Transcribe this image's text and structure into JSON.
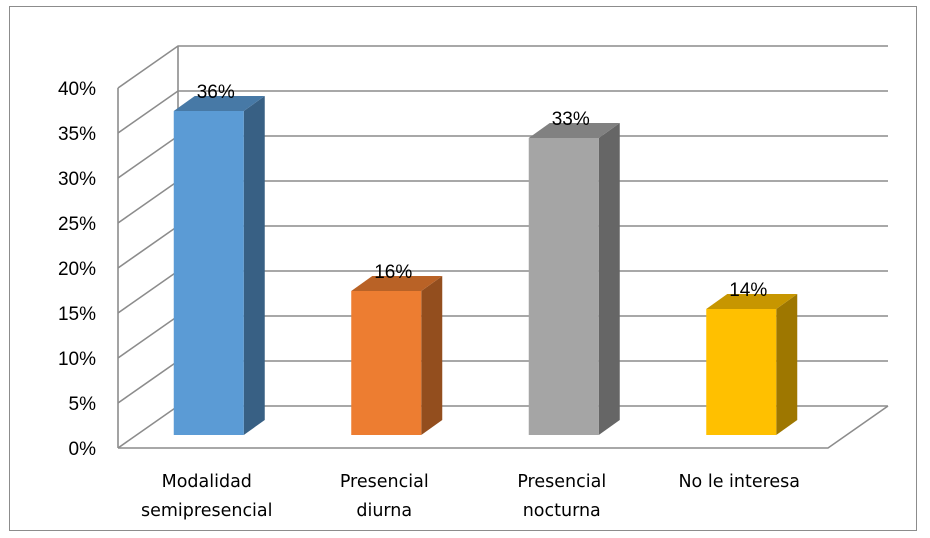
{
  "chart_data": {
    "type": "bar",
    "style": "3d-column",
    "categories": [
      [
        "Modalidad",
        "semipresencial"
      ],
      [
        "Presencial",
        "diurna"
      ],
      [
        "Presencial",
        "nocturna"
      ],
      [
        "No le interesa"
      ]
    ],
    "values": [
      36,
      16,
      33,
      14
    ],
    "data_labels": [
      "36%",
      "16%",
      "33%",
      "14%"
    ],
    "colors": [
      "#5b9bd5",
      "#ed7d31",
      "#a5a5a5",
      "#ffc000"
    ],
    "y_ticks": [
      "0%",
      "5%",
      "10%",
      "15%",
      "20%",
      "25%",
      "30%",
      "35%",
      "40%"
    ],
    "ylim": [
      0,
      40
    ],
    "y_step": 5,
    "grid": true,
    "legend": "none"
  }
}
